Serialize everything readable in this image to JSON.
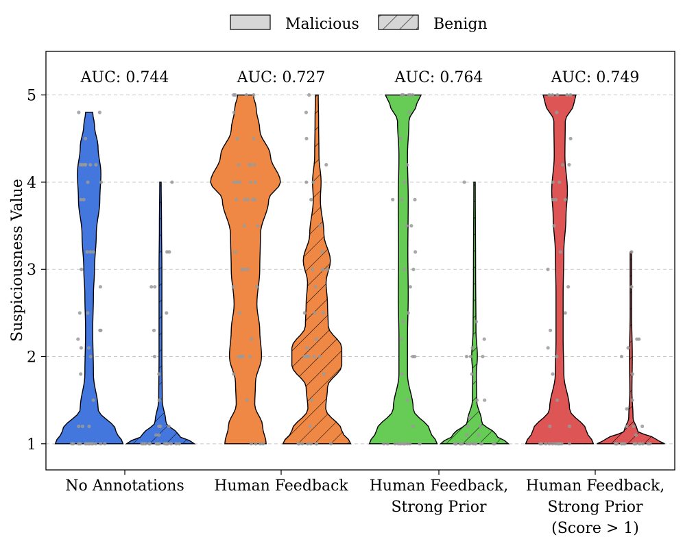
{
  "chart_data": {
    "type": "violin",
    "title": "",
    "xlabel": "",
    "ylabel": "Suspiciousness Value",
    "ylim": [
      0.7,
      5.5
    ],
    "yticks": [
      1,
      2,
      3,
      4,
      5
    ],
    "grid": "horizontal dashed",
    "legend": {
      "placement": "top-center",
      "entries": [
        {
          "name": "Malicious",
          "pattern": "solid"
        },
        {
          "name": "Benign",
          "pattern": "hatched"
        }
      ]
    },
    "categories": [
      {
        "label_lines": [
          "No Annotations"
        ],
        "auc_label": "AUC: 0.744",
        "color": "#4477dd",
        "malicious": {
          "bins": [
            [
              1.0,
              0.95
            ],
            [
              1.15,
              0.75
            ],
            [
              1.4,
              0.25
            ],
            [
              1.8,
              0.12
            ],
            [
              2.3,
              0.1
            ],
            [
              2.7,
              0.12
            ],
            [
              3.0,
              0.15
            ],
            [
              3.4,
              0.2
            ],
            [
              3.8,
              0.3
            ],
            [
              4.1,
              0.33
            ],
            [
              4.4,
              0.25
            ],
            [
              4.65,
              0.15
            ],
            [
              4.8,
              0.1
            ]
          ],
          "points": [
            1.0,
            1.0,
            1.0,
            1.0,
            1.0,
            1.0,
            1.0,
            1.0,
            1.0,
            1.0,
            1.0,
            1.0,
            1.0,
            1.2,
            1.2,
            1.2,
            1.5,
            1.8,
            2.0,
            2.1,
            2.1,
            2.2,
            2.3,
            2.3,
            2.5,
            2.5,
            2.8,
            3.0,
            3.2,
            3.2,
            3.2,
            3.8,
            3.8,
            4.0,
            4.0,
            4.2,
            4.2,
            4.2,
            4.2,
            4.2,
            4.2,
            4.5,
            4.8,
            4.8
          ]
        },
        "benign": {
          "bins": [
            [
              1.0,
              0.95
            ],
            [
              1.1,
              0.5
            ],
            [
              1.25,
              0.15
            ],
            [
              1.5,
              0.05
            ],
            [
              2.0,
              0.04
            ],
            [
              3.0,
              0.04
            ],
            [
              3.5,
              0.03
            ],
            [
              4.0,
              0.02
            ]
          ],
          "points": [
            1.0,
            1.0,
            1.0,
            1.0,
            1.0,
            1.0,
            1.0,
            1.0,
            1.0,
            1.0,
            1.0,
            1.0,
            1.0,
            1.0,
            1.0,
            1.0,
            1.0,
            1.1,
            1.1,
            1.2,
            1.2,
            1.2,
            1.5,
            1.8,
            2.0,
            2.3,
            2.5,
            2.8,
            2.8,
            3.2,
            3.2,
            4.0
          ]
        }
      },
      {
        "label_lines": [
          "Human Feedback"
        ],
        "auc_label": "AUC: 0.727",
        "color": "#ee8844",
        "malicious": {
          "bins": [
            [
              1.0,
              0.58
            ],
            [
              1.2,
              0.48
            ],
            [
              1.45,
              0.26
            ],
            [
              1.7,
              0.28
            ],
            [
              2.0,
              0.45
            ],
            [
              2.3,
              0.4
            ],
            [
              2.6,
              0.32
            ],
            [
              3.0,
              0.4
            ],
            [
              3.4,
              0.42
            ],
            [
              3.8,
              0.65
            ],
            [
              4.0,
              0.98
            ],
            [
              4.3,
              0.7
            ],
            [
              4.6,
              0.4
            ],
            [
              4.85,
              0.3
            ],
            [
              5.0,
              0.22
            ]
          ],
          "points": [
            1.0,
            1.0,
            1.0,
            1.0,
            1.5,
            1.8,
            2.0,
            2.0,
            2.0,
            2.0,
            2.0,
            2.2,
            2.5,
            2.8,
            2.8,
            3.0,
            3.0,
            3.0,
            3.2,
            3.5,
            3.5,
            3.8,
            3.8,
            3.8,
            3.8,
            3.8,
            4.0,
            4.0,
            4.0,
            4.0,
            4.0,
            4.2,
            4.2,
            4.2,
            4.2,
            4.5,
            4.5,
            4.8,
            5.0,
            5.0,
            5.0,
            5.0
          ]
        },
        "benign": {
          "bins": [
            [
              1.0,
              0.95
            ],
            [
              1.15,
              0.7
            ],
            [
              1.4,
              0.25
            ],
            [
              1.65,
              0.3
            ],
            [
              1.9,
              0.7
            ],
            [
              2.1,
              0.7
            ],
            [
              2.35,
              0.32
            ],
            [
              2.6,
              0.3
            ],
            [
              2.85,
              0.26
            ],
            [
              3.1,
              0.38
            ],
            [
              3.4,
              0.2
            ],
            [
              3.8,
              0.1
            ],
            [
              4.0,
              0.12
            ],
            [
              4.3,
              0.06
            ],
            [
              4.7,
              0.05
            ],
            [
              5.0,
              0.04
            ]
          ],
          "points": [
            1.0,
            1.0,
            1.0,
            1.0,
            1.0,
            1.0,
            1.0,
            1.0,
            1.2,
            1.5,
            1.8,
            2.0,
            2.0,
            2.0,
            2.0,
            2.0,
            2.0,
            2.1,
            2.2,
            2.5,
            2.5,
            2.5,
            2.8,
            3.0,
            3.0,
            3.0,
            3.2,
            3.5,
            3.8,
            4.0,
            4.0,
            4.2,
            4.5,
            4.8,
            5.0
          ]
        }
      },
      {
        "label_lines": [
          "Human Feedback,",
          "Strong Prior"
        ],
        "auc_label": "AUC: 0.764",
        "color": "#66cc55",
        "malicious": {
          "bins": [
            [
              1.0,
              0.95
            ],
            [
              1.15,
              0.75
            ],
            [
              1.4,
              0.28
            ],
            [
              1.8,
              0.12
            ],
            [
              2.2,
              0.12
            ],
            [
              2.7,
              0.14
            ],
            [
              3.2,
              0.13
            ],
            [
              3.8,
              0.14
            ],
            [
              4.3,
              0.12
            ],
            [
              4.7,
              0.16
            ],
            [
              4.9,
              0.38
            ],
            [
              5.0,
              0.5
            ]
          ],
          "points": [
            1.0,
            1.0,
            1.0,
            1.0,
            1.0,
            1.0,
            1.0,
            1.0,
            1.0,
            1.0,
            1.0,
            1.0,
            1.0,
            1.2,
            1.5,
            1.8,
            2.0,
            2.0,
            2.2,
            2.4,
            2.5,
            2.8,
            3.0,
            3.0,
            3.2,
            3.5,
            3.5,
            3.8,
            3.8,
            3.8,
            4.0,
            4.2,
            4.5,
            4.8,
            5.0,
            5.0,
            5.0,
            5.0,
            5.0
          ]
        },
        "benign": {
          "bins": [
            [
              1.0,
              0.95
            ],
            [
              1.1,
              0.6
            ],
            [
              1.25,
              0.2
            ],
            [
              1.5,
              0.06
            ],
            [
              1.8,
              0.05
            ],
            [
              2.0,
              0.08
            ],
            [
              2.3,
              0.04
            ],
            [
              3.0,
              0.03
            ],
            [
              4.0,
              0.02
            ]
          ],
          "points": [
            1.0,
            1.0,
            1.0,
            1.0,
            1.0,
            1.0,
            1.0,
            1.0,
            1.0,
            1.0,
            1.0,
            1.0,
            1.0,
            1.0,
            1.0,
            1.0,
            1.1,
            1.1,
            1.2,
            1.2,
            1.3,
            1.5,
            1.5,
            1.8,
            2.0,
            2.0,
            2.0,
            2.1,
            2.2,
            2.4,
            4.0
          ]
        }
      },
      {
        "label_lines": [
          "Human Feedback,",
          "Strong Prior",
          "(Score > 1)"
        ],
        "auc_label": "AUC: 0.749",
        "color": "#dd5555",
        "malicious": {
          "bins": [
            [
              1.0,
              0.95
            ],
            [
              1.15,
              0.75
            ],
            [
              1.4,
              0.28
            ],
            [
              1.8,
              0.12
            ],
            [
              2.2,
              0.1
            ],
            [
              2.7,
              0.1
            ],
            [
              3.2,
              0.12
            ],
            [
              3.6,
              0.18
            ],
            [
              3.9,
              0.22
            ],
            [
              4.3,
              0.15
            ],
            [
              4.7,
              0.16
            ],
            [
              4.9,
              0.4
            ],
            [
              5.0,
              0.46
            ]
          ],
          "points": [
            1.0,
            1.0,
            1.0,
            1.0,
            1.0,
            1.0,
            1.0,
            1.0,
            1.0,
            1.0,
            1.0,
            1.2,
            1.2,
            1.5,
            1.8,
            2.0,
            2.1,
            2.3,
            2.5,
            2.8,
            3.0,
            3.2,
            3.5,
            3.8,
            3.8,
            3.8,
            4.0,
            4.0,
            4.2,
            4.2,
            4.5,
            4.8,
            5.0,
            5.0,
            5.0,
            5.0,
            5.0
          ]
        },
        "benign": {
          "bins": [
            [
              1.0,
              0.95
            ],
            [
              1.05,
              0.7
            ],
            [
              1.15,
              0.18
            ],
            [
              1.3,
              0.06
            ],
            [
              1.6,
              0.03
            ],
            [
              2.0,
              0.04
            ],
            [
              2.5,
              0.02
            ],
            [
              3.2,
              0.02
            ]
          ],
          "points": [
            1.0,
            1.0,
            1.0,
            1.0,
            1.0,
            1.0,
            1.0,
            1.0,
            1.0,
            1.0,
            1.0,
            1.0,
            1.0,
            1.0,
            1.0,
            1.1,
            1.2,
            1.2,
            1.2,
            1.4,
            1.5,
            1.8,
            2.0,
            2.1,
            2.2,
            2.2,
            2.8,
            3.2
          ]
        }
      }
    ]
  }
}
